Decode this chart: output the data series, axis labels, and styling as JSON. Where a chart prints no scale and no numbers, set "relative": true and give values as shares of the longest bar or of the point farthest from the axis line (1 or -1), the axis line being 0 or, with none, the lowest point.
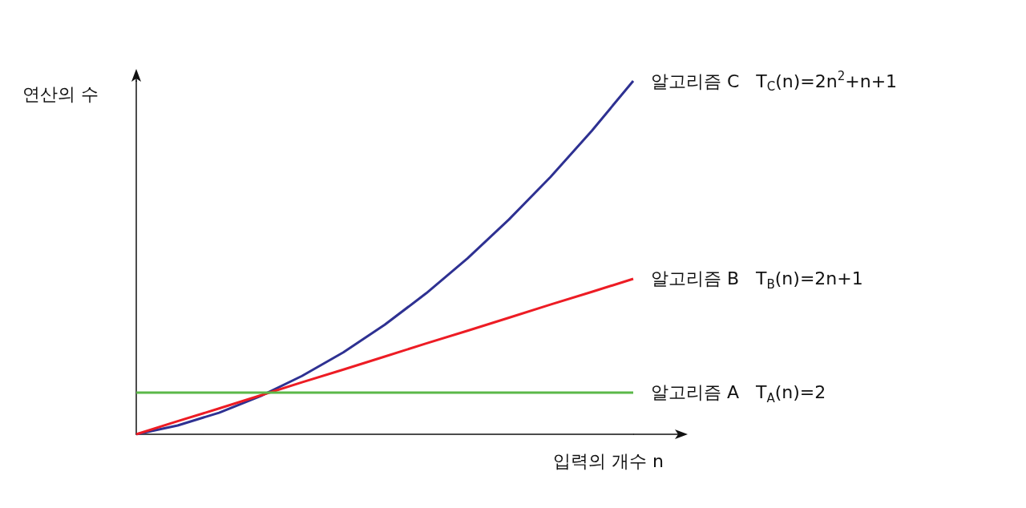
{
  "chart_data": {
    "type": "line",
    "relative": true,
    "xlabel": "입력의 개수 n",
    "ylabel": "연산의 수",
    "categories": [
      null,
      null,
      null,
      null,
      null,
      null,
      null,
      null,
      null,
      null,
      null,
      null,
      null
    ],
    "series": [
      {
        "name": "알고리즘 C   T$_{C}$(n)=2n$^{2}$+n+1",
        "color": "#2e3192",
        "values": [
          0,
          0.025,
          0.061,
          0.108,
          0.165,
          0.232,
          0.31,
          0.399,
          0.498,
          0.608,
          0.728,
          0.859,
          1
        ]
      },
      {
        "name": "알고리즘 B   T$_{B}$(n)=2n+1",
        "color": "#ed1c24",
        "values": [
          0,
          0.037,
          0.073,
          0.11,
          0.147,
          0.183,
          0.22,
          0.257,
          0.293,
          0.33,
          0.367,
          0.403,
          0.44
        ]
      },
      {
        "name": "알고리즘 A   T$_{A}$(n)=2",
        "color": "#5bb849",
        "values": [
          0.118,
          0.118,
          0.118,
          0.118,
          0.118,
          0.118,
          0.118,
          0.118,
          0.118,
          0.118,
          0.118,
          0.118,
          0.118
        ]
      }
    ],
    "legend": false,
    "grid": false,
    "marker": "none",
    "line_style": "solid"
  }
}
